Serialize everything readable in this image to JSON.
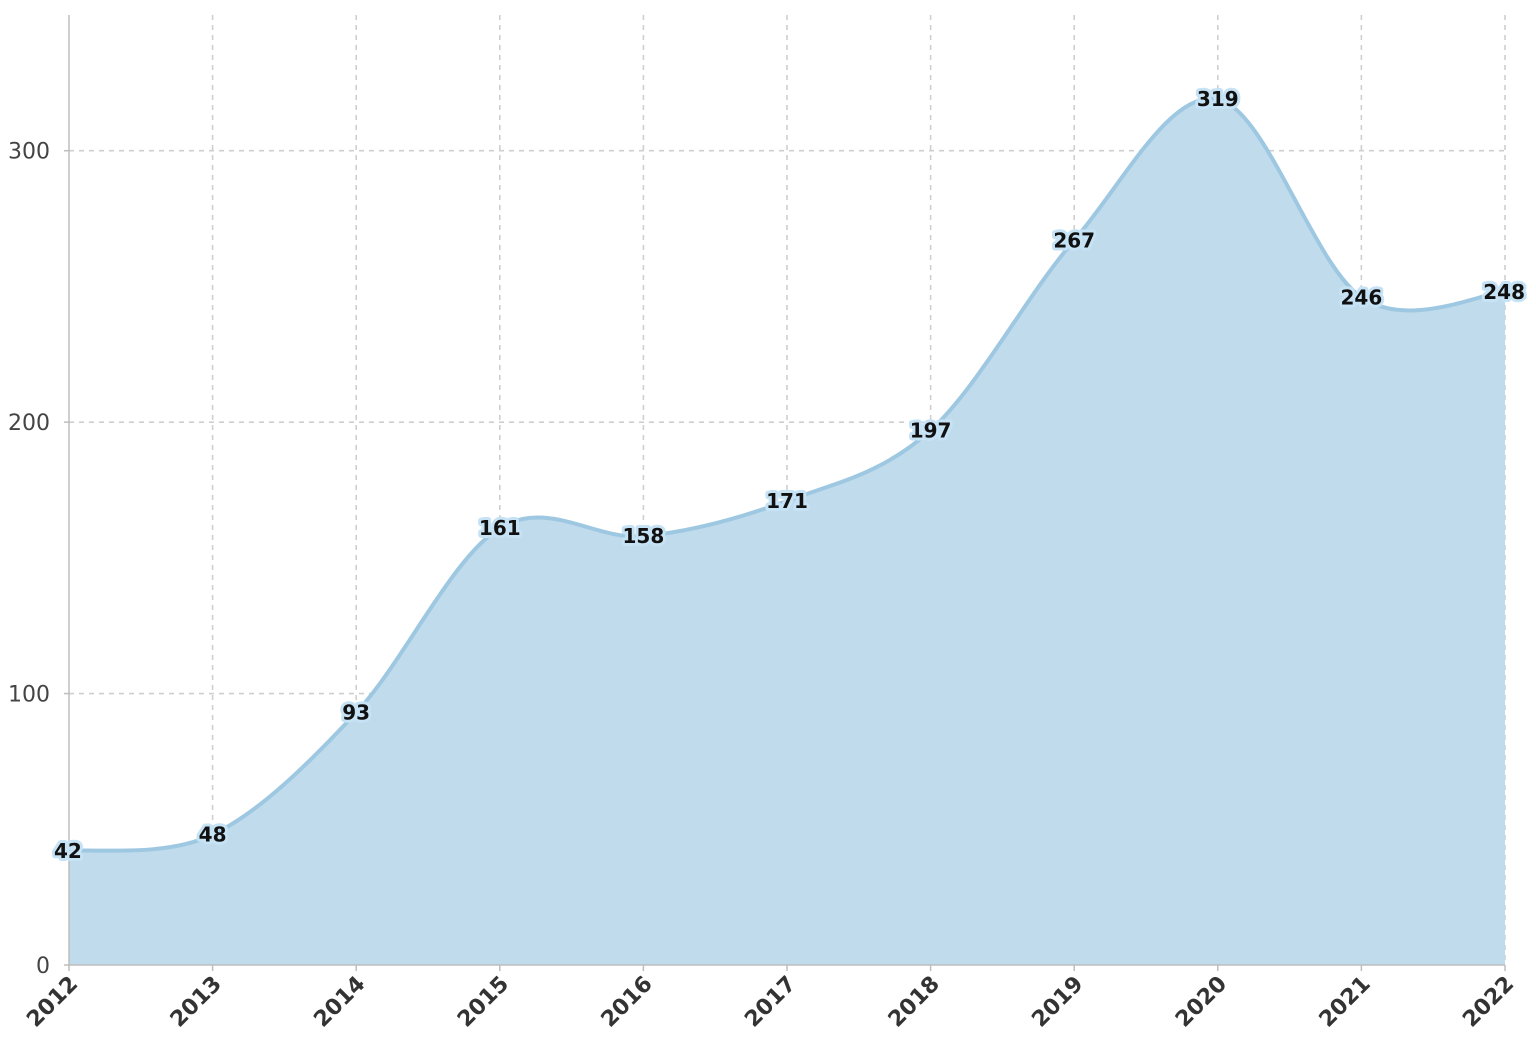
{
  "chart_data": {
    "type": "area",
    "title": "",
    "xlabel": "",
    "ylabel": "",
    "x": [
      "2012",
      "2013",
      "2014",
      "2015",
      "2016",
      "2017",
      "2018",
      "2019",
      "2020",
      "2021",
      "2022"
    ],
    "series": [
      {
        "values": [
          42,
          48,
          93,
          161,
          158,
          171,
          197,
          267,
          319,
          246,
          248
        ]
      }
    ],
    "ylim": [
      0,
      350
    ],
    "yticks": [
      0,
      100,
      200,
      300
    ],
    "grid": true,
    "legend": "none",
    "smooth": true,
    "colors": {
      "fill": "#c0dbeb",
      "line": "#9ec8e2",
      "grid": "#cfcfcf"
    }
  }
}
